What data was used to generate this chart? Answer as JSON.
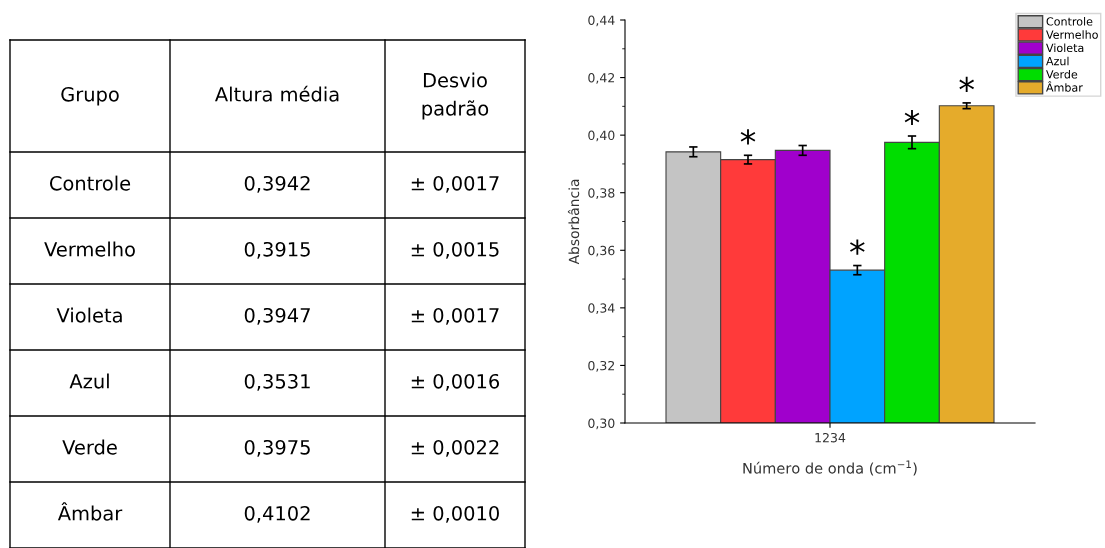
{
  "chart_data": {
    "type": "bar",
    "categories": [
      "1234"
    ],
    "series": [
      {
        "name": "Controle",
        "color": "#c4c4c4",
        "values": [
          0.3942
        ],
        "errors": [
          0.0017
        ],
        "value_labels": [
          null
        ]
      },
      {
        "name": "Vermelho",
        "color": "#ff3a3a",
        "values": [
          0.3915
        ],
        "errors": [
          0.0015
        ],
        "value_labels": [
          "*"
        ]
      },
      {
        "name": "Violeta",
        "color": "#a000cc",
        "values": [
          0.3947
        ],
        "errors": [
          0.0017
        ],
        "value_labels": [
          null
        ]
      },
      {
        "name": "Azul",
        "color": "#00a3ff",
        "values": [
          0.3531
        ],
        "errors": [
          0.0016
        ],
        "value_labels": [
          "*"
        ]
      },
      {
        "name": "Verde",
        "color": "#00dd00",
        "values": [
          0.3975
        ],
        "errors": [
          0.0022
        ],
        "value_labels": [
          "*"
        ]
      },
      {
        "name": "Âmbar",
        "color": "#e5ab2b",
        "values": [
          0.4102
        ],
        "errors": [
          0.001
        ],
        "value_labels": [
          "*"
        ]
      }
    ],
    "xlabel": "Número de onda (cm$^{−1}$)",
    "ylabel": "Absorbância",
    "ylim": [
      0.3,
      0.44
    ],
    "yticks": [
      {
        "value": 0.3,
        "label": "0,30"
      },
      {
        "value": 0.32,
        "label": "0,32"
      },
      {
        "value": 0.34,
        "label": "0,34"
      },
      {
        "value": 0.36,
        "label": "0,36"
      },
      {
        "value": 0.38,
        "label": "0,38"
      },
      {
        "value": 0.4,
        "label": "0,40"
      },
      {
        "value": 0.42,
        "label": "0,42"
      },
      {
        "value": 0.44,
        "label": "0,44"
      }
    ],
    "legend": "top right",
    "grid": false,
    "annotations": [
      "Grupo",
      "Altura média",
      "Desvio padrão",
      "Controle",
      "0,3942",
      "± 0,0017",
      "Vermelho",
      "0,3915",
      "± 0,0015",
      "Violeta",
      "0,3947",
      "± 0,0017",
      "Azul",
      "0,3531",
      "± 0,0016",
      "Verde",
      "0,3975",
      "± 0,0022",
      "Âmbar",
      "0,4102",
      "± 0,0010"
    ]
  }
}
